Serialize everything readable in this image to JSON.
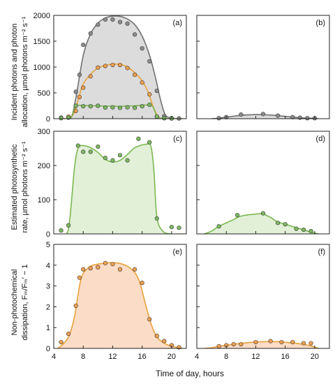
{
  "figure": {
    "x_axis_label": "Time of day, hours",
    "row_labels": [
      [
        "Incident photons and photon",
        "allocation, µmol photons m⁻² s⁻¹"
      ],
      [
        "Estimated photosynthetic",
        "rate, µmol photons m⁻² s⁻¹"
      ],
      [
        "Non-photochemical",
        "dissipation, Fₘ/Fₘ′ − 1"
      ]
    ]
  },
  "colors": {
    "gray_line": "#707070",
    "gray_fill": "#dcdcdc",
    "gray_point": "#8c8c8c",
    "orange_line": "#e8a23a",
    "orange_point": "#f0a050",
    "orange_fill": "#fbdcc6",
    "green_line": "#7ab850",
    "green_point": "#7cb860",
    "green_fill": "#e3f0d8",
    "axis": "#222222"
  },
  "chart_data": [
    {
      "panel": "(a)",
      "type": "line",
      "xlim": [
        4,
        22
      ],
      "ylim": [
        0,
        2000
      ],
      "xticks": [
        4,
        8,
        12,
        16,
        20
      ],
      "yticks": [
        0,
        500,
        1000,
        1500,
        2000
      ],
      "show_ytick_labels": true,
      "show_xtick_labels": false,
      "series": [
        {
          "color": "gray",
          "filled": true,
          "points": [
            [
              5,
              20
            ],
            [
              6,
              30
            ],
            [
              7,
              520
            ],
            [
              7.5,
              850
            ],
            [
              8,
              1430
            ],
            [
              9,
              1650
            ],
            [
              10,
              1820
            ],
            [
              11,
              1920
            ],
            [
              12,
              1920
            ],
            [
              13,
              1870
            ],
            [
              14,
              1840
            ],
            [
              15,
              1630
            ],
            [
              16,
              1360
            ],
            [
              17,
              1110
            ],
            [
              18,
              540
            ],
            [
              19,
              50
            ],
            [
              20,
              10
            ],
            [
              21,
              5
            ]
          ],
          "curve": [
            [
              5,
              0
            ],
            [
              6.3,
              15
            ],
            [
              7,
              400
            ],
            [
              8,
              1220
            ],
            [
              9,
              1640
            ],
            [
              10,
              1850
            ],
            [
              11,
              1950
            ],
            [
              12,
              1985
            ],
            [
              13,
              1980
            ],
            [
              14,
              1930
            ],
            [
              15,
              1820
            ],
            [
              16,
              1600
            ],
            [
              17,
              1230
            ],
            [
              17.8,
              800
            ],
            [
              18.4,
              420
            ],
            [
              19,
              120
            ],
            [
              19.5,
              30
            ],
            [
              20.5,
              5
            ],
            [
              21.5,
              0
            ]
          ]
        },
        {
          "color": "orange",
          "filled": false,
          "points": [
            [
              6,
              40
            ],
            [
              7,
              150
            ],
            [
              7.5,
              420
            ],
            [
              8,
              600
            ],
            [
              9,
              820
            ],
            [
              10,
              990
            ],
            [
              11,
              1020
            ],
            [
              12,
              1040
            ],
            [
              13,
              1040
            ],
            [
              14,
              980
            ],
            [
              15,
              850
            ],
            [
              16,
              700
            ],
            [
              17,
              470
            ],
            [
              18,
              40
            ],
            [
              19,
              10
            ],
            [
              20,
              5
            ]
          ],
          "curve": [
            [
              5,
              0
            ],
            [
              6,
              15
            ],
            [
              6.8,
              120
            ],
            [
              7.5,
              460
            ],
            [
              8,
              670
            ],
            [
              9,
              860
            ],
            [
              10,
              980
            ],
            [
              11,
              1030
            ],
            [
              12,
              1055
            ],
            [
              13,
              1050
            ],
            [
              14,
              1000
            ],
            [
              15,
              890
            ],
            [
              16,
              730
            ],
            [
              16.8,
              520
            ],
            [
              17.5,
              230
            ],
            [
              18.2,
              40
            ],
            [
              19,
              5
            ],
            [
              21.5,
              0
            ]
          ]
        },
        {
          "color": "green",
          "filled": false,
          "points": [
            [
              5,
              10
            ],
            [
              6,
              20
            ],
            [
              7,
              250
            ],
            [
              8,
              240
            ],
            [
              9,
              240
            ],
            [
              10,
              250
            ],
            [
              11,
              215
            ],
            [
              12,
              220
            ],
            [
              13,
              210
            ],
            [
              14,
              220
            ],
            [
              15,
              210
            ],
            [
              16,
              240
            ],
            [
              17,
              270
            ],
            [
              18,
              40
            ],
            [
              19,
              10
            ],
            [
              20,
              5
            ]
          ],
          "curve": [
            [
              5,
              0
            ],
            [
              6.3,
              10
            ],
            [
              6.8,
              200
            ],
            [
              7.3,
              255
            ],
            [
              9,
              250
            ],
            [
              11,
              245
            ],
            [
              13,
              240
            ],
            [
              15,
              250
            ],
            [
              16.5,
              265
            ],
            [
              17.4,
              240
            ],
            [
              17.9,
              80
            ],
            [
              18.5,
              10
            ],
            [
              19.5,
              0
            ],
            [
              21.5,
              0
            ]
          ]
        }
      ]
    },
    {
      "panel": "(b)",
      "type": "line",
      "xlim": [
        4,
        22
      ],
      "ylim": [
        0,
        2000
      ],
      "xticks": [
        4,
        8,
        12,
        16,
        20
      ],
      "yticks": [
        0,
        500,
        1000,
        1500,
        2000
      ],
      "show_ytick_labels": false,
      "show_xtick_labels": false,
      "series": [
        {
          "color": "gray",
          "filled": true,
          "points": [
            [
              7,
              10
            ],
            [
              8,
              30
            ],
            [
              10,
              80
            ],
            [
              13,
              90
            ],
            [
              15,
              60
            ],
            [
              17,
              30
            ],
            [
              18,
              20
            ],
            [
              19,
              10
            ],
            [
              20,
              10
            ]
          ],
          "curve": [
            [
              6,
              0
            ],
            [
              7,
              12
            ],
            [
              8,
              30
            ],
            [
              10,
              65
            ],
            [
              12,
              80
            ],
            [
              13,
              78
            ],
            [
              15,
              60
            ],
            [
              17,
              30
            ],
            [
              18.5,
              15
            ],
            [
              20,
              8
            ],
            [
              20.5,
              0
            ]
          ]
        }
      ]
    },
    {
      "panel": "(c)",
      "type": "line",
      "xlim": [
        4,
        22
      ],
      "ylim": [
        0,
        300
      ],
      "xticks": [
        4,
        8,
        12,
        16,
        20
      ],
      "yticks": [
        0,
        100,
        200,
        300
      ],
      "show_ytick_labels": true,
      "show_xtick_labels": false,
      "series": [
        {
          "color": "green",
          "filled": true,
          "points": [
            [
              5,
              10
            ],
            [
              6,
              25
            ],
            [
              7.3,
              258
            ],
            [
              8,
              240
            ],
            [
              9,
              240
            ],
            [
              10,
              255
            ],
            [
              11,
              222
            ],
            [
              12,
              215
            ],
            [
              13,
              230
            ],
            [
              14,
              215
            ],
            [
              15.5,
              278
            ],
            [
              17,
              268
            ],
            [
              18,
              45
            ],
            [
              20,
              20
            ],
            [
              21,
              18
            ]
          ],
          "curve": [
            [
              5,
              0
            ],
            [
              6,
              15
            ],
            [
              6.8,
              190
            ],
            [
              7.3,
              250
            ],
            [
              8,
              258
            ],
            [
              9,
              252
            ],
            [
              10,
              238
            ],
            [
              11,
              218
            ],
            [
              12,
              210
            ],
            [
              13,
              215
            ],
            [
              14,
              232
            ],
            [
              15,
              252
            ],
            [
              16.5,
              262
            ],
            [
              17.2,
              255
            ],
            [
              17.6,
              185
            ],
            [
              18,
              50
            ],
            [
              18.8,
              8
            ],
            [
              20,
              0
            ],
            [
              21.5,
              0
            ]
          ]
        }
      ]
    },
    {
      "panel": "(d)",
      "type": "line",
      "xlim": [
        4,
        22
      ],
      "ylim": [
        0,
        300
      ],
      "xticks": [
        4,
        8,
        12,
        16,
        20
      ],
      "yticks": [
        0,
        100,
        200,
        300
      ],
      "show_ytick_labels": false,
      "show_xtick_labels": false,
      "series": [
        {
          "color": "green",
          "filled": true,
          "points": [
            [
              7,
              22
            ],
            [
              9.5,
              55
            ],
            [
              13,
              60
            ],
            [
              15,
              32
            ],
            [
              16,
              28
            ],
            [
              17.5,
              15
            ],
            [
              18.5,
              12
            ],
            [
              19.5,
              8
            ]
          ],
          "curve": [
            [
              5,
              0
            ],
            [
              6,
              8
            ],
            [
              7,
              22
            ],
            [
              9,
              42
            ],
            [
              10,
              52
            ],
            [
              12,
              58
            ],
            [
              13,
              58
            ],
            [
              14,
              48
            ],
            [
              15,
              35
            ],
            [
              16.5,
              25
            ],
            [
              18,
              15
            ],
            [
              19.5,
              5
            ],
            [
              20.5,
              0
            ]
          ]
        }
      ]
    },
    {
      "panel": "(e)",
      "type": "line",
      "xlim": [
        4,
        22
      ],
      "ylim": [
        0,
        5
      ],
      "xticks": [
        4,
        8,
        12,
        16,
        20
      ],
      "yticks": [
        0,
        1,
        2,
        3,
        4,
        5
      ],
      "show_ytick_labels": true,
      "show_xtick_labels": true,
      "series": [
        {
          "color": "orange",
          "filled": true,
          "points": [
            [
              5,
              0.3
            ],
            [
              6,
              0.7
            ],
            [
              7,
              2.05
            ],
            [
              7.5,
              3.4
            ],
            [
              8,
              3.8
            ],
            [
              9,
              3.85
            ],
            [
              10,
              3.9
            ],
            [
              11,
              4.1
            ],
            [
              12,
              4.05
            ],
            [
              13,
              3.8
            ],
            [
              15,
              3.8
            ],
            [
              16,
              3.15
            ],
            [
              17,
              1.4
            ],
            [
              18,
              0.6
            ],
            [
              19,
              0.35
            ],
            [
              20,
              0.15
            ],
            [
              21,
              0.05
            ]
          ],
          "curve": [
            [
              4.5,
              0
            ],
            [
              5,
              0.12
            ],
            [
              6,
              0.55
            ],
            [
              6.8,
              1.5
            ],
            [
              7.5,
              3.0
            ],
            [
              8,
              3.6
            ],
            [
              9,
              3.95
            ],
            [
              10,
              4.05
            ],
            [
              11,
              4.1
            ],
            [
              12,
              4.12
            ],
            [
              13,
              4.08
            ],
            [
              14,
              3.95
            ],
            [
              15,
              3.65
            ],
            [
              15.7,
              3.15
            ],
            [
              16.4,
              2.2
            ],
            [
              17.2,
              1.2
            ],
            [
              18,
              0.55
            ],
            [
              19,
              0.25
            ],
            [
              20,
              0.1
            ],
            [
              21,
              0.03
            ],
            [
              21.5,
              0
            ]
          ]
        }
      ]
    },
    {
      "panel": "(f)",
      "type": "line",
      "xlim": [
        4,
        22
      ],
      "ylim": [
        0,
        5
      ],
      "xticks": [
        4,
        8,
        12,
        16,
        20
      ],
      "yticks": [
        0,
        1,
        2,
        3,
        4,
        5
      ],
      "show_ytick_labels": false,
      "show_xtick_labels": true,
      "series": [
        {
          "color": "orange",
          "filled": true,
          "points": [
            [
              7,
              0.1
            ],
            [
              8,
              0.15
            ],
            [
              9,
              0.2
            ],
            [
              10,
              0.2
            ],
            [
              12,
              0.3
            ],
            [
              14,
              0.35
            ],
            [
              15.5,
              0.3
            ],
            [
              17,
              0.3
            ],
            [
              18.5,
              0.25
            ],
            [
              19.5,
              0.25
            ]
          ],
          "curve": [
            [
              5,
              0
            ],
            [
              6,
              0.03
            ],
            [
              7,
              0.1
            ],
            [
              9,
              0.2
            ],
            [
              11,
              0.28
            ],
            [
              13,
              0.32
            ],
            [
              15,
              0.32
            ],
            [
              16.5,
              0.28
            ],
            [
              18,
              0.22
            ],
            [
              19.5,
              0.12
            ],
            [
              20.5,
              0
            ]
          ]
        }
      ]
    }
  ]
}
